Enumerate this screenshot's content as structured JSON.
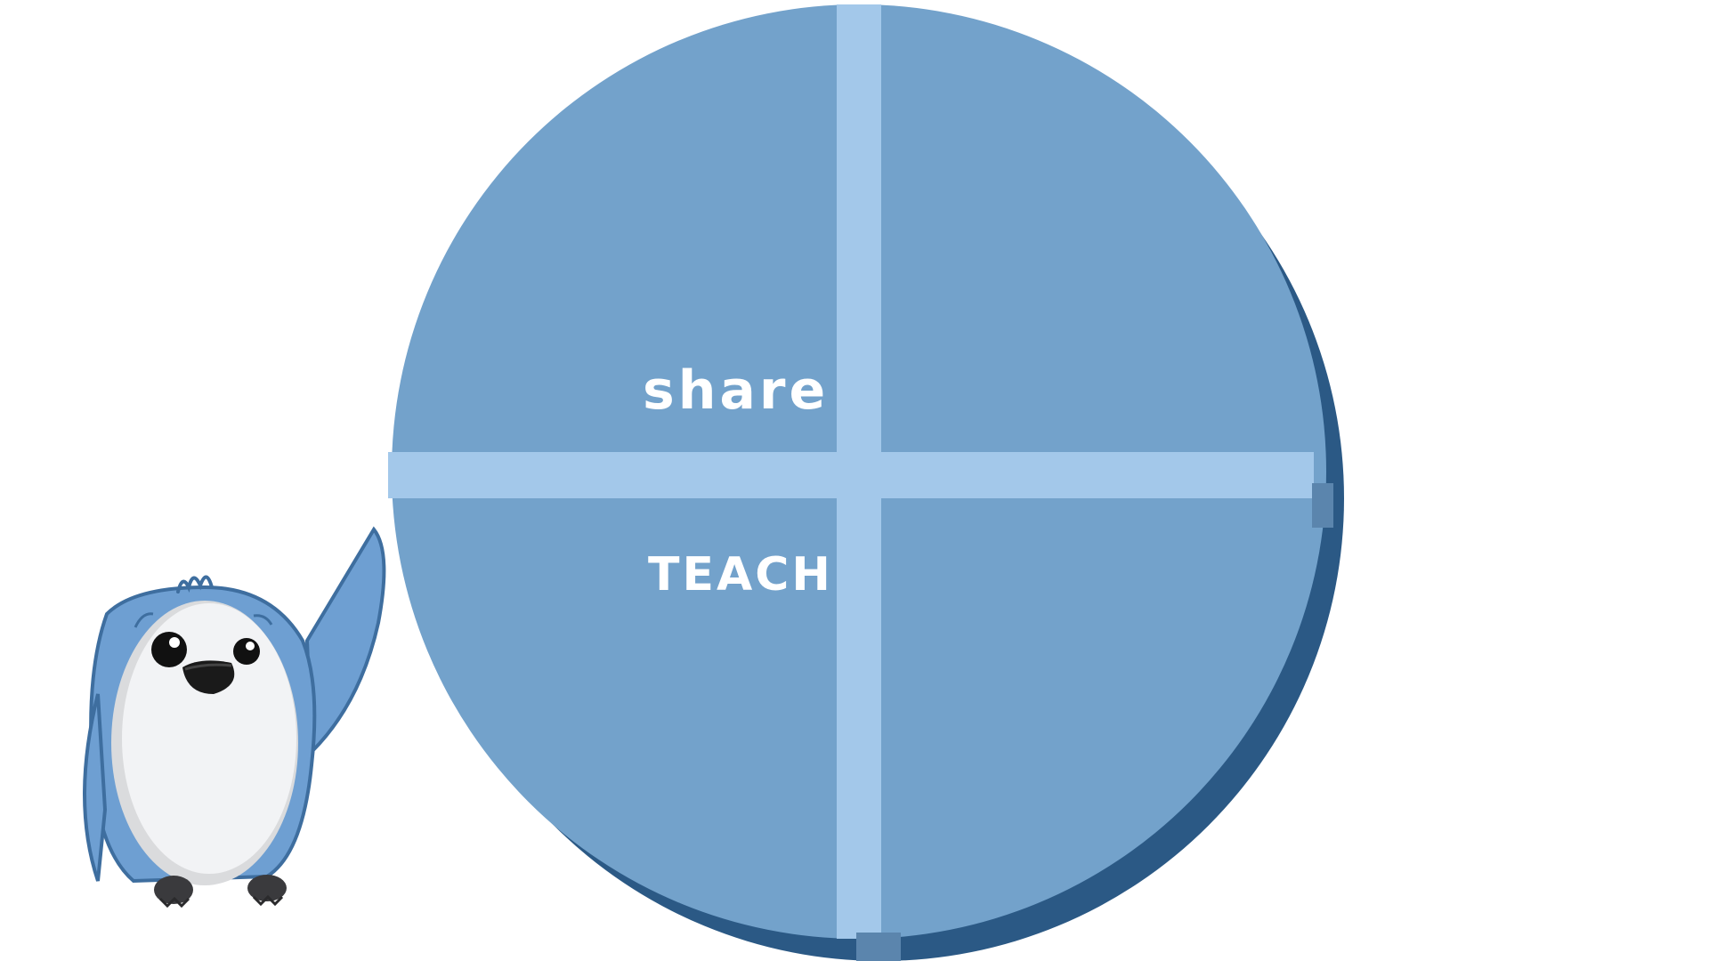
{
  "board": {
    "quadrants": {
      "top_left": "share",
      "bottom_left": "TEACH",
      "top_right": "",
      "bottom_right": ""
    }
  },
  "colors": {
    "disc_fill": "#73a2cb",
    "disc_shadow": "#2b5985",
    "divider": "#a3c8ea",
    "mascot_body": "#6e9fd2",
    "mascot_belly": "#f2f3f5"
  },
  "icons": {
    "mascot": "bird-mascot-icon"
  }
}
